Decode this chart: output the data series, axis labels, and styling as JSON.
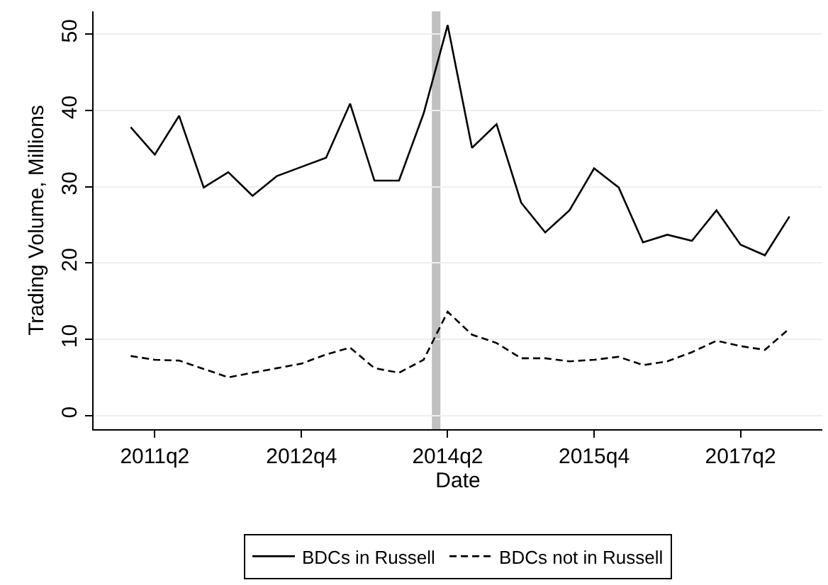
{
  "chart_data": {
    "type": "line",
    "xlabel": "Date",
    "ylabel": "Trading Volume, Millions",
    "x": [
      "2011-01",
      "2011-04",
      "2011-07",
      "2011-10",
      "2012-01",
      "2012-04",
      "2012-07",
      "2012-10",
      "2013-01",
      "2013-04",
      "2013-07",
      "2013-10",
      "2014-01",
      "2014-04",
      "2014-07",
      "2014-10",
      "2015-01",
      "2015-04",
      "2015-07",
      "2015-10",
      "2016-01",
      "2016-04",
      "2016-07",
      "2016-10",
      "2017-01",
      "2017-04",
      "2017-07",
      "2017-10"
    ],
    "series": [
      {
        "name": "BDCs in Russell",
        "color": "#000000",
        "line_style": "solid",
        "values": [
          37.8,
          34.2,
          39.3,
          29.9,
          31.9,
          28.8,
          31.4,
          32.6,
          33.8,
          40.9,
          30.8,
          30.8,
          39.6,
          51.2,
          35.1,
          38.2,
          27.9,
          24.0,
          26.9,
          32.4,
          29.9,
          22.7,
          23.7,
          22.9,
          26.9,
          22.4,
          21.0,
          26.1
        ]
      },
      {
        "name": "BDCs not in Russell",
        "color": "#000000",
        "line_style": "dashed",
        "values": [
          7.8,
          7.3,
          7.2,
          6.1,
          5.0,
          5.6,
          6.2,
          6.8,
          8.0,
          8.9,
          6.2,
          5.6,
          7.3,
          13.6,
          10.6,
          9.5,
          7.5,
          7.5,
          7.1,
          7.3,
          7.7,
          6.6,
          7.1,
          8.3,
          9.8,
          9.1,
          8.6,
          11.4
        ]
      }
    ],
    "xlim": [
      "2010-08-15",
      "2018-02-01"
    ],
    "xticks": [
      {
        "value": "2011-04",
        "label": "2011q2"
      },
      {
        "value": "2012-10",
        "label": "2012q4"
      },
      {
        "value": "2014-04",
        "label": "2014q2"
      },
      {
        "value": "2015-10",
        "label": "2015q4"
      },
      {
        "value": "2017-04",
        "label": "2017q2"
      }
    ],
    "ylim": [
      -1.8,
      53
    ],
    "yticks": [
      0,
      10,
      20,
      30,
      40,
      50
    ],
    "bands": [
      {
        "axis": "x",
        "from": "2014-02-01",
        "to": "2014-03-05",
        "color": "#c0c0c0"
      }
    ],
    "grid": "y",
    "legend": "bottom",
    "marker": "none"
  }
}
